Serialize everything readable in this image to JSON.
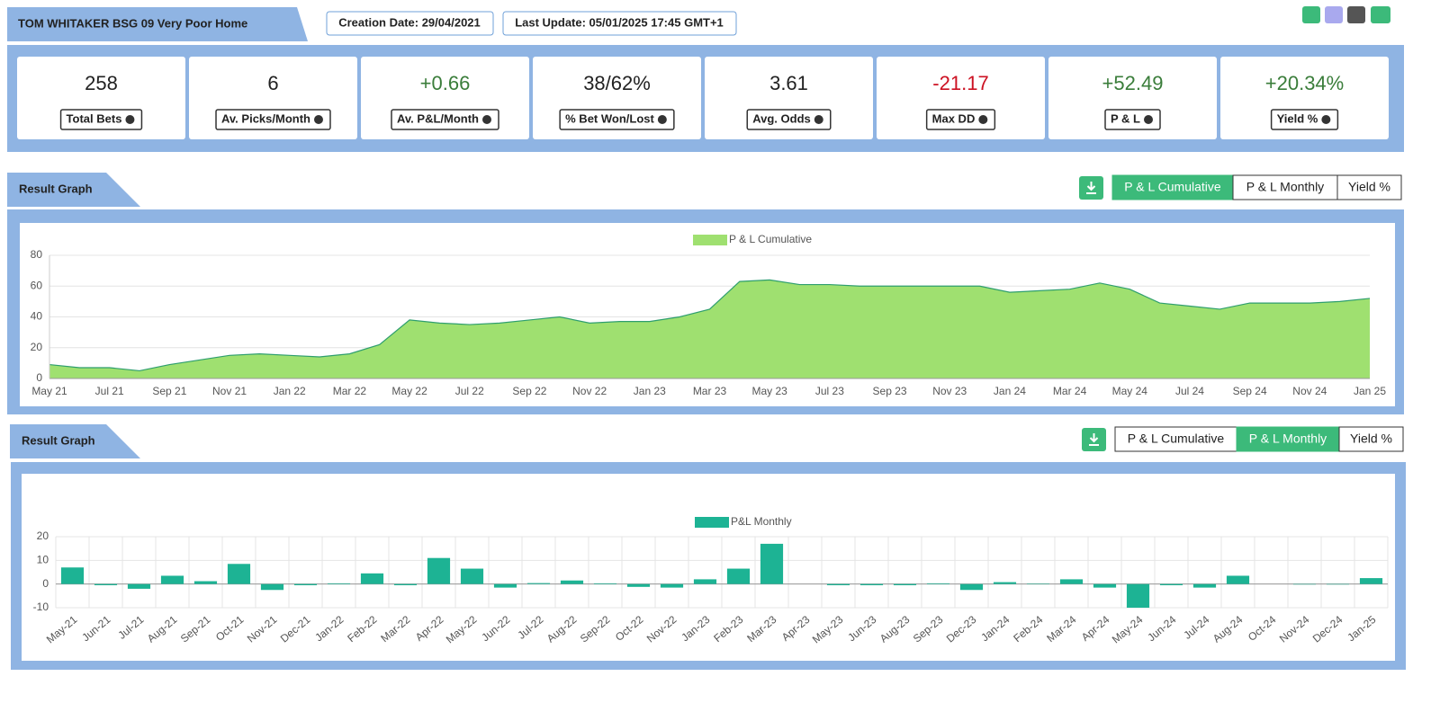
{
  "header": {
    "title": "TOM WHITAKER BSG 09 Very Poor Home",
    "created": "Creation Date: 29/04/2021",
    "updated": "Last Update: 05/01/2025 17:45 GMT+1"
  },
  "stats": [
    {
      "value": 258,
      "label": "Total Bets",
      "color": "#222222"
    },
    {
      "value": 6,
      "label": "Av. Picks/Month",
      "color": "#222222"
    },
    {
      "value": "+0.66",
      "label": "Av. P&L/Month",
      "color": "#3a7d3a"
    },
    {
      "value": "38/62%",
      "label": "% Bet Won/Lost",
      "color": "#222222"
    },
    {
      "value": 3.61,
      "label": "Avg. Odds",
      "color": "#222222"
    },
    {
      "value": "-21.17",
      "label": "Max DD",
      "color": "#cc1122"
    },
    {
      "value": "+52.49",
      "label": "P & L",
      "color": "#3a7d3a"
    },
    {
      "value": "+20.34%",
      "label": "Yield %",
      "color": "#3a7d3a"
    }
  ],
  "sections": [
    {
      "title": "Result Graph",
      "buttons": [
        "P & L Cumulative",
        "P & L Monthly",
        "Yield %"
      ],
      "active": 0
    },
    {
      "title": "Result Graph",
      "buttons": [
        "P & L Cumulative",
        "P & L Monthly",
        "Yield %"
      ],
      "active": 1
    }
  ],
  "chart_data": [
    {
      "type": "area",
      "categories": [
        "May 21",
        null,
        "Jul 21",
        null,
        "Sep 21",
        null,
        "Nov 21",
        null,
        "Jan 22",
        null,
        "Mar 22",
        null,
        "May 22",
        null,
        "Jul 22",
        null,
        "Sep 22",
        null,
        "Nov 22",
        null,
        "Jan 23",
        null,
        "Mar 23",
        null,
        "May 23",
        null,
        "Jul 23",
        null,
        "Sep 23",
        null,
        "Nov 23",
        null,
        "Jan 24",
        null,
        "Mar 24",
        null,
        "May 24",
        null,
        "Jul 24",
        null,
        "Sep 24",
        null,
        "Nov 24",
        null,
        "Jan 25"
      ],
      "series": [
        {
          "name": "P & L Cumulative",
          "color": "#9fe070",
          "values": [
            9,
            7,
            7,
            5,
            9,
            12,
            15,
            16,
            15,
            14,
            16,
            22,
            38,
            36,
            35,
            36,
            38,
            40,
            36,
            37,
            37,
            40,
            45,
            63,
            64,
            61,
            61,
            60,
            60,
            60,
            60,
            60,
            56,
            57,
            58,
            62,
            58,
            49,
            47,
            45,
            49,
            49,
            49,
            50,
            52
          ]
        }
      ],
      "ylim": [
        0,
        80
      ],
      "yticks": [
        0,
        20,
        40,
        60,
        80
      ],
      "grid": true
    },
    {
      "type": "bar",
      "categories": [
        "May-21",
        "Jun-21",
        "Jul-21",
        "Aug-21",
        "Sep-21",
        "Oct-21",
        "Nov-21",
        "Dec-21",
        "Jan-22",
        "Feb-22",
        "Mar-22",
        "Apr-22",
        "May-22",
        "Jun-22",
        "Jul-22",
        "Aug-22",
        "Sep-22",
        "Oct-22",
        "Nov-22",
        "Jan-23",
        "Feb-23",
        "Mar-23",
        "Apr-23",
        "May-23",
        "Jun-23",
        "Aug-23",
        "Sep-23",
        "Dec-23",
        "Jan-24",
        "Feb-24",
        "Mar-24",
        "Apr-24",
        "May-24",
        "Jun-24",
        "Jul-24",
        "Aug-24",
        "Oct-24",
        "Nov-24",
        "Dec-24",
        "Jan-25"
      ],
      "series": [
        {
          "name": "P&L Monthly",
          "color": "#1db394",
          "values": [
            7,
            -0.5,
            -2,
            3.5,
            1.2,
            8.5,
            -2.5,
            -0.5,
            0.3,
            4.5,
            -0.5,
            11,
            6.5,
            -1.5,
            0.4,
            1.5,
            0.3,
            -1.2,
            -1.5,
            2,
            6.5,
            17,
            0,
            -0.5,
            -0.5,
            -0.5,
            0.3,
            -2.5,
            0.8,
            0.2,
            2,
            -1.5,
            -10,
            -0.5,
            -1.5,
            3.5,
            0,
            -0.2,
            -0.2,
            2.5
          ]
        }
      ],
      "ylim": [
        -10,
        20
      ],
      "yticks": [
        -10,
        0,
        10,
        20
      ],
      "grid": true
    }
  ]
}
